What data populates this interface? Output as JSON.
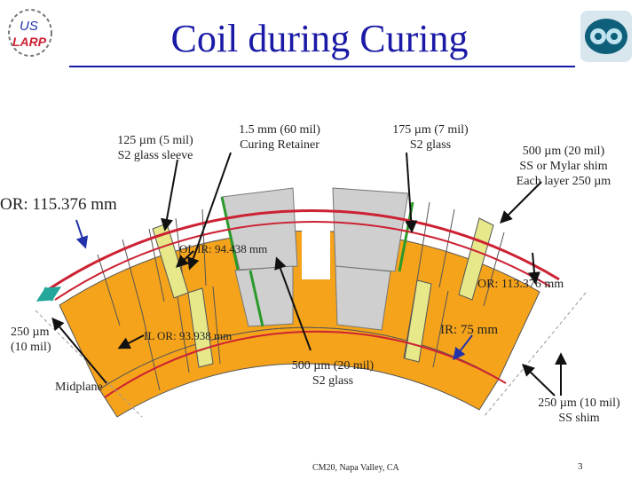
{
  "slide": {
    "title": "Coil during Curing",
    "footer": "CM20, Napa Valley, CA",
    "page_number": "3"
  },
  "logos": {
    "left_text_top": "US",
    "left_text_bottom": "LARP"
  },
  "labels": {
    "glass_sleeve": [
      "125 µm (5 mil)",
      "S2 glass sleeve"
    ],
    "curing_retainer": [
      "1.5 mm (60 mil)",
      "Curing Retainer"
    ],
    "s2_glass_top": [
      "175 µm (7 mil)",
      "S2 glass"
    ],
    "shim": [
      "500 µm (20 mil)",
      "SS or Mylar shim",
      "Each layer 250 µm"
    ],
    "outer_or": "OR: 115.376 mm",
    "ol_ir": "OL IR: 94.438 mm",
    "or_113": "OR: 113.376 mm",
    "gap_250": [
      "250 µm",
      "(10 mil)"
    ],
    "il_or": "IL OR: 93.938 mm",
    "ir_75": "IR: 75 mm",
    "midplane": "Midplane",
    "s2_glass_bottom": [
      "500 µm (20 mil)",
      "S2 glass"
    ],
    "ss_shim": [
      "250 µm (10 mil)",
      "SS shim"
    ]
  },
  "colors": {
    "title": "#1a1aa6",
    "cable": "#f5a31a",
    "wedge_yellow": "#e6e88a",
    "grey_pole": "#cfcfcf",
    "retainer_red": "#cc2233",
    "glass_green": "#2a9a2a",
    "arrow_blue": "#2233aa",
    "midplane_teal": "#22a79a"
  }
}
